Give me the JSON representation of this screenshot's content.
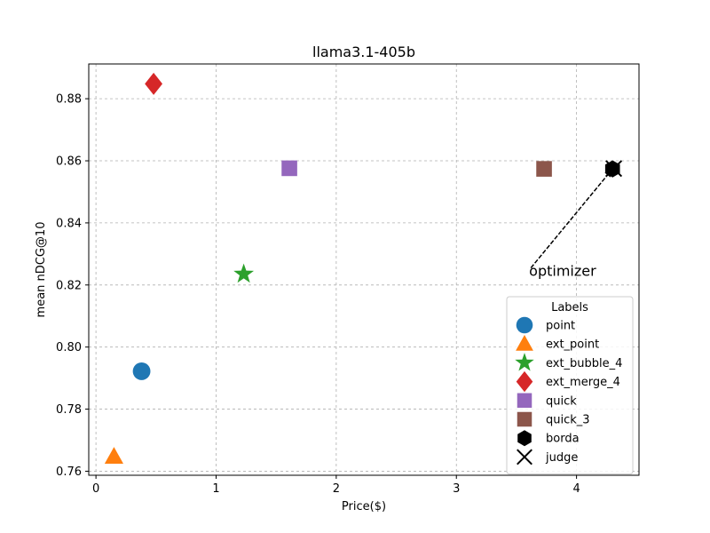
{
  "chart_data": {
    "type": "scatter",
    "title": "llama3.1-405b",
    "xlabel": "Price($)",
    "ylabel": "mean nDCG@10",
    "xlim": [
      -0.06,
      4.52
    ],
    "ylim": [
      0.7587,
      0.8912
    ],
    "xticks": [
      0,
      1,
      2,
      3,
      4
    ],
    "yticks": [
      0.76,
      0.78,
      0.8,
      0.82,
      0.84,
      0.86,
      0.88
    ],
    "ytick_labels": [
      "0.76",
      "0.78",
      "0.80",
      "0.82",
      "0.84",
      "0.86",
      "0.88"
    ],
    "grid": true,
    "legend": {
      "title": "Labels",
      "position": "lower-right"
    },
    "series": [
      {
        "name": "point",
        "marker": "circle",
        "color": "#1f77b4",
        "x": 0.38,
        "y": 0.7922
      },
      {
        "name": "ext_point",
        "marker": "triangle",
        "color": "#ff7f0e",
        "x": 0.15,
        "y": 0.7647
      },
      {
        "name": "ext_bubble_4",
        "marker": "star",
        "color": "#2ca02c",
        "x": 1.23,
        "y": 0.8235
      },
      {
        "name": "ext_merge_4",
        "marker": "diamond",
        "color": "#d62728",
        "x": 0.48,
        "y": 0.8848
      },
      {
        "name": "quick",
        "marker": "square",
        "color": "#9467bd",
        "x": 1.61,
        "y": 0.8576
      },
      {
        "name": "quick_3",
        "marker": "square",
        "color": "#8c564b",
        "x": 3.73,
        "y": 0.8574
      },
      {
        "name": "borda",
        "marker": "hexagon",
        "color": "#000000",
        "x": 4.3,
        "y": 0.8574
      },
      {
        "name": "judge",
        "marker": "x",
        "color": "#000000",
        "x": 4.31,
        "y": 0.8575
      }
    ],
    "annotation": {
      "text": "optimizer",
      "text_x": 3.62,
      "text_y": 0.8255,
      "arrow_to_x": 4.3,
      "arrow_to_y": 0.8574
    }
  }
}
